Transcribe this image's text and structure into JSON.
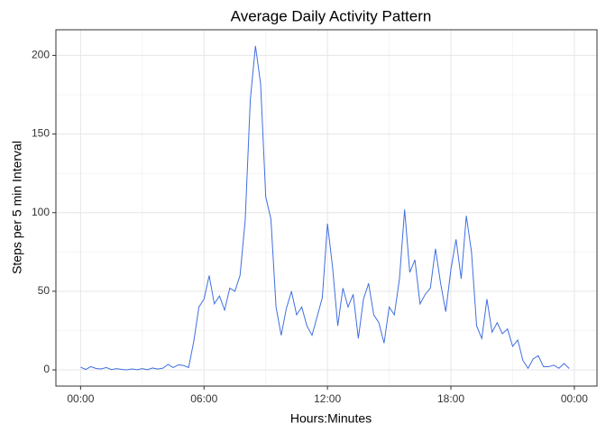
{
  "chart_data": {
    "type": "line",
    "title": "Average Daily Activity Pattern",
    "x_label": "Hours:Minutes",
    "y_label": "Steps per 5 min Interval",
    "x": [
      0,
      0.25,
      0.5,
      0.75,
      1,
      1.25,
      1.5,
      1.75,
      2,
      2.25,
      2.5,
      2.75,
      3,
      3.25,
      3.5,
      3.75,
      4,
      4.25,
      4.5,
      4.75,
      5,
      5.25,
      5.5,
      5.75,
      6,
      6.25,
      6.5,
      6.75,
      7,
      7.25,
      7.5,
      7.75,
      8,
      8.25,
      8.5,
      8.75,
      9,
      9.25,
      9.5,
      9.75,
      10,
      10.25,
      10.5,
      10.75,
      11,
      11.25,
      11.5,
      11.75,
      12,
      12.25,
      12.5,
      12.75,
      13,
      13.25,
      13.5,
      13.75,
      14,
      14.25,
      14.5,
      14.75,
      15,
      15.25,
      15.5,
      15.75,
      16,
      16.25,
      16.5,
      16.75,
      17,
      17.25,
      17.5,
      17.75,
      18,
      18.25,
      18.5,
      18.75,
      19,
      19.25,
      19.5,
      19.75,
      20,
      20.25,
      20.5,
      20.75,
      21,
      21.25,
      21.5,
      21.75,
      22,
      22.25,
      22.5,
      22.75,
      23,
      23.25,
      23.5,
      23.75
    ],
    "series": [
      {
        "name": "steps",
        "color": "#3f6fe0",
        "values": [
          1.7,
          0.3,
          2.1,
          0.9,
          0.6,
          1.5,
          0.2,
          0.8,
          0.3,
          0,
          0.6,
          0.1,
          0.8,
          0.1,
          1.2,
          0.5,
          1.1,
          3.5,
          1.5,
          3.2,
          2.8,
          1.5,
          18,
          40,
          45,
          60,
          42,
          47,
          38,
          52,
          50,
          60,
          95,
          172,
          206,
          182,
          110,
          96,
          40,
          22,
          39,
          50,
          35,
          40,
          28,
          22,
          34,
          46,
          93,
          65,
          28,
          52,
          40,
          48,
          20,
          45,
          55,
          35,
          30,
          17,
          40,
          35,
          58,
          102,
          62,
          70,
          42,
          48,
          52,
          77,
          55,
          37,
          64,
          83,
          58,
          98,
          75,
          28,
          20,
          45,
          24,
          30,
          23,
          26,
          15,
          19,
          6,
          1,
          7,
          9,
          2,
          2,
          3,
          1,
          4,
          0.9
        ]
      }
    ],
    "xlim": [
      -1.2,
      25.1
    ],
    "ylim": [
      -10.3,
      216.3
    ],
    "xticks": [
      {
        "value": 0,
        "label": "00:00"
      },
      {
        "value": 6,
        "label": "06:00"
      },
      {
        "value": 12,
        "label": "12:00"
      },
      {
        "value": 18,
        "label": "18:00"
      },
      {
        "value": 24,
        "label": "00:00"
      }
    ],
    "yticks": [
      0,
      50,
      100,
      150,
      200
    ],
    "x_minor_ticks": [
      3,
      9,
      15,
      21
    ],
    "y_minor_ticks": [
      25,
      75,
      125,
      175
    ],
    "grid": true
  }
}
